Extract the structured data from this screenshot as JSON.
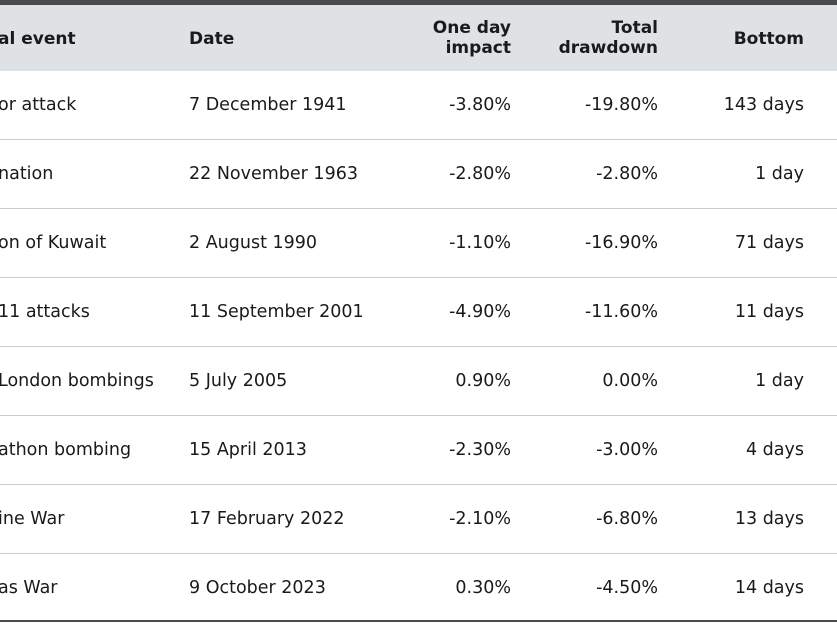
{
  "table": {
    "headers": {
      "event": "al event",
      "date": "Date",
      "one_day_impact_line1": "One day",
      "one_day_impact_line2": "impact",
      "total_drawdown_line1": "Total",
      "total_drawdown_line2": "drawdown",
      "bottom": "Bottom"
    },
    "rows": [
      {
        "event": "or attack",
        "date": "7 December 1941",
        "one_day_impact": "-3.80%",
        "total_drawdown": "-19.80%",
        "bottom": "143 days"
      },
      {
        "event": "nation",
        "date": "22 November 1963",
        "one_day_impact": "-2.80%",
        "total_drawdown": "-2.80%",
        "bottom": "1 day"
      },
      {
        "event": "on of Kuwait",
        "date": "2 August 1990",
        "one_day_impact": "-1.10%",
        "total_drawdown": "-16.90%",
        "bottom": "71 days"
      },
      {
        "event": "11 attacks",
        "date": "11 September 2001",
        "one_day_impact": "-4.90%",
        "total_drawdown": "-11.60%",
        "bottom": "11 days"
      },
      {
        "event": "London bombings",
        "date": "5 July 2005",
        "one_day_impact": "0.90%",
        "total_drawdown": "0.00%",
        "bottom": "1 day"
      },
      {
        "event": "athon bombing",
        "date": "15 April 2013",
        "one_day_impact": "-2.30%",
        "total_drawdown": "-3.00%",
        "bottom": "4 days"
      },
      {
        "event": "ine War",
        "date": "17 February 2022",
        "one_day_impact": "-2.10%",
        "total_drawdown": "-6.80%",
        "bottom": "13 days"
      },
      {
        "event": "as War",
        "date": "9 October 2023",
        "one_day_impact": "0.30%",
        "total_drawdown": "-4.50%",
        "bottom": "14 days"
      }
    ]
  },
  "colors": {
    "header_background": "#dfe2e5",
    "rule": "#4a4a4a",
    "row_separator": "#c9cdd1",
    "text": "#1a1a1a"
  }
}
